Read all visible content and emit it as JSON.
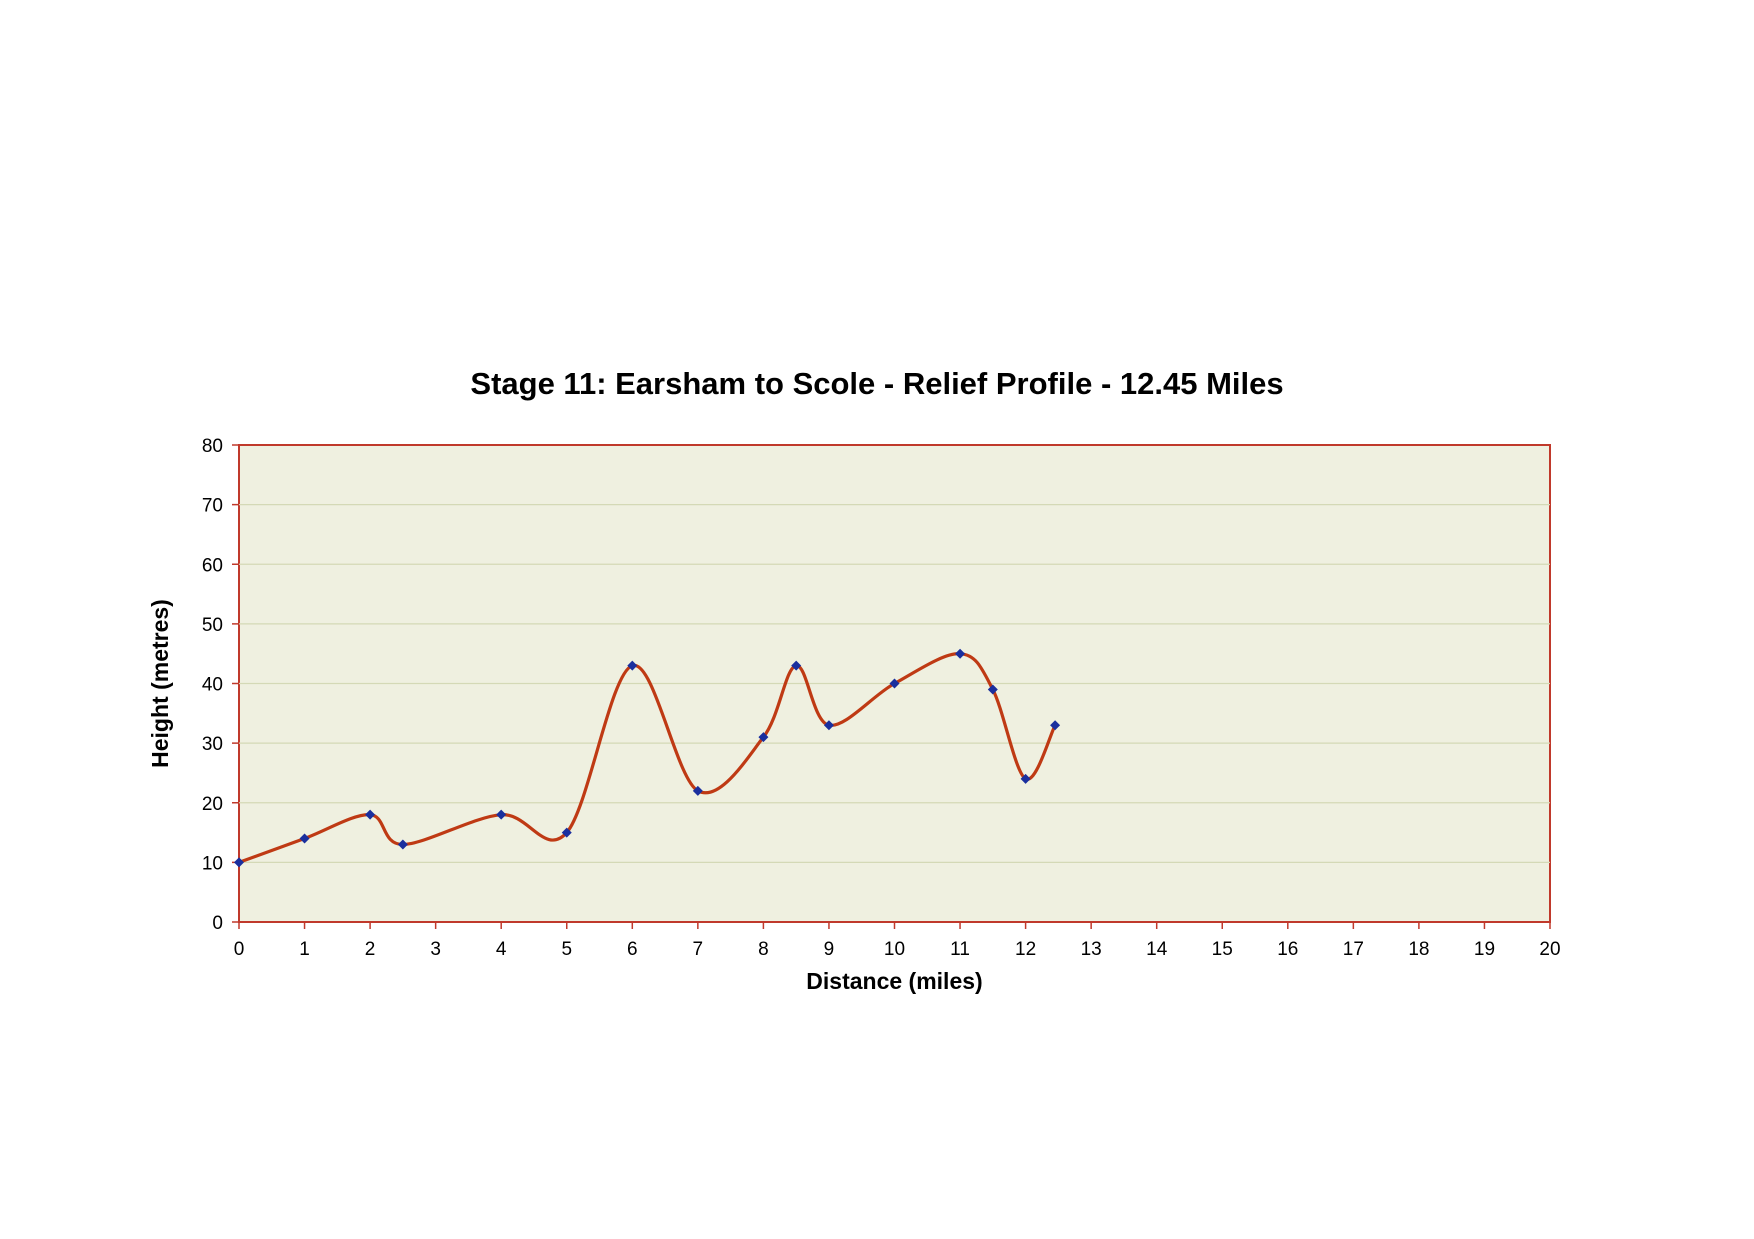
{
  "chart_data": {
    "type": "line",
    "title": "Stage 11: Earsham to Scole - Relief Profile - 12.45 Miles",
    "xlabel": "Distance (miles)",
    "ylabel": "Height (metres)",
    "xlim": [
      0,
      20
    ],
    "ylim": [
      0,
      80
    ],
    "xticks": [
      0,
      1,
      2,
      3,
      4,
      5,
      6,
      7,
      8,
      9,
      10,
      11,
      12,
      13,
      14,
      15,
      16,
      17,
      18,
      19,
      20
    ],
    "yticks": [
      0,
      10,
      20,
      30,
      40,
      50,
      60,
      70,
      80
    ],
    "grid": true,
    "smoothed": true,
    "series": [
      {
        "x": [
          0,
          1,
          2,
          2.5,
          4,
          5,
          6,
          7,
          8,
          8.5,
          9,
          10,
          11,
          11.5,
          12,
          12.45
        ],
        "y": [
          10,
          14,
          18,
          13,
          18,
          15,
          43,
          22,
          31,
          43,
          33,
          40,
          45,
          39,
          24,
          33
        ]
      }
    ],
    "colors": {
      "plot_background": "#eff0e0",
      "plot_border": "#c0392b",
      "gridline": "#d4d9b6",
      "line": "#bf3a14",
      "marker": "#1a2f9e"
    }
  }
}
